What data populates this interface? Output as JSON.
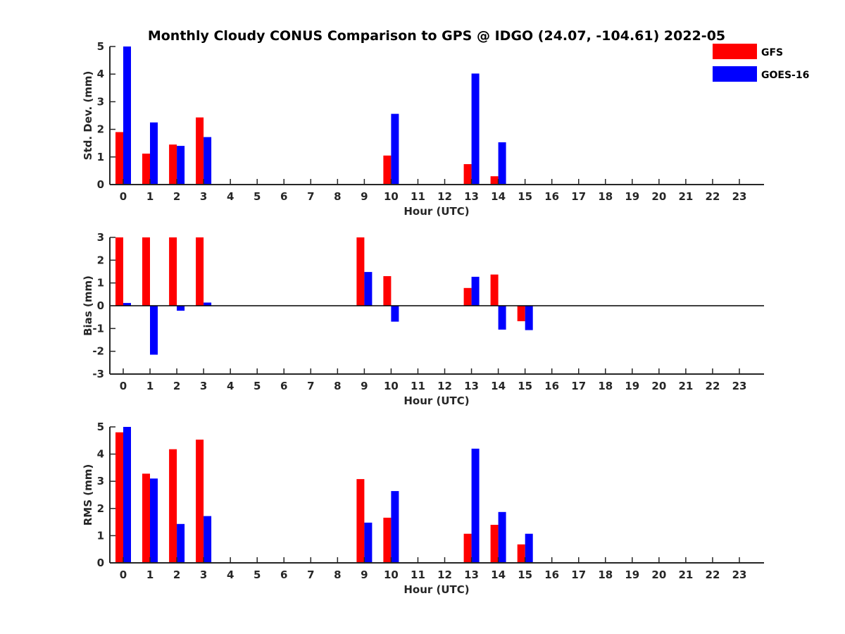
{
  "chart_data": {
    "title": "Monthly Cloudy CONUS Comparison to GPS @ IDGO (24.07, -104.61) 2022-05",
    "legend": [
      {
        "name": "GFS",
        "color": "#ff0000"
      },
      {
        "name": "GOES-16",
        "color": "#0000ff"
      }
    ],
    "legend_position": "top-right",
    "panels": [
      {
        "type": "bar",
        "xlabel": "Hour (UTC)",
        "ylabel": "Std. Dev. (mm)",
        "ylim": [
          0,
          5
        ],
        "yticks": [
          0,
          1,
          2,
          3,
          4,
          5
        ],
        "xticks": [
          0,
          1,
          2,
          3,
          4,
          5,
          6,
          7,
          8,
          9,
          10,
          11,
          12,
          13,
          14,
          15,
          16,
          17,
          18,
          19,
          20,
          21,
          22,
          23
        ],
        "grid": false,
        "series": [
          {
            "name": "GFS",
            "color": "#ff0000",
            "values": [
              1.9,
              1.12,
              1.45,
              2.43,
              0,
              0,
              0,
              0,
              0,
              0,
              1.05,
              0,
              0,
              0.74,
              0.3,
              0,
              0,
              0,
              0,
              0,
              0,
              0,
              0,
              0
            ]
          },
          {
            "name": "GOES-16",
            "color": "#0000ff",
            "values": [
              5.0,
              2.25,
              1.4,
              1.72,
              0,
              0,
              0,
              0,
              0,
              0,
              2.56,
              0,
              0,
              4.02,
              1.53,
              0,
              0,
              0,
              0,
              0,
              0,
              0,
              0,
              0
            ]
          }
        ]
      },
      {
        "type": "bar",
        "xlabel": "Hour (UTC)",
        "ylabel": "Bias (mm)",
        "ylim": [
          -3,
          3
        ],
        "yticks": [
          -3,
          -2,
          -1,
          0,
          1,
          2,
          3
        ],
        "xticks": [
          0,
          1,
          2,
          3,
          4,
          5,
          6,
          7,
          8,
          9,
          10,
          11,
          12,
          13,
          14,
          15,
          16,
          17,
          18,
          19,
          20,
          21,
          22,
          23
        ],
        "grid": false,
        "zero_line": true,
        "series": [
          {
            "name": "GFS",
            "color": "#ff0000",
            "values": [
              3.0,
              3.0,
              3.0,
              3.0,
              0,
              0,
              0,
              0,
              0,
              3.0,
              1.3,
              0,
              0,
              0.78,
              1.37,
              -0.68,
              0,
              0,
              0,
              0,
              0,
              0,
              0,
              0
            ]
          },
          {
            "name": "GOES-16",
            "color": "#0000ff",
            "values": [
              0.12,
              -2.15,
              -0.22,
              0.14,
              0,
              0,
              0,
              0,
              0,
              1.48,
              -0.7,
              0,
              0,
              1.27,
              -1.05,
              -1.07,
              0,
              0,
              0,
              0,
              0,
              0,
              0,
              0
            ]
          }
        ]
      },
      {
        "type": "bar",
        "xlabel": "Hour (UTC)",
        "ylabel": "RMS (mm)",
        "ylim": [
          0,
          5
        ],
        "yticks": [
          0,
          1,
          2,
          3,
          4,
          5
        ],
        "xticks": [
          0,
          1,
          2,
          3,
          4,
          5,
          6,
          7,
          8,
          9,
          10,
          11,
          12,
          13,
          14,
          15,
          16,
          17,
          18,
          19,
          20,
          21,
          22,
          23
        ],
        "grid": false,
        "series": [
          {
            "name": "GFS",
            "color": "#ff0000",
            "values": [
              4.8,
              3.28,
              4.18,
              4.53,
              0,
              0,
              0,
              0,
              0,
              3.08,
              1.66,
              0,
              0,
              1.07,
              1.4,
              0.68,
              0,
              0,
              0,
              0,
              0,
              0,
              0,
              0
            ]
          },
          {
            "name": "GOES-16",
            "color": "#0000ff",
            "values": [
              5.0,
              3.1,
              1.43,
              1.72,
              0,
              0,
              0,
              0,
              0,
              1.48,
              2.64,
              0,
              0,
              4.2,
              1.87,
              1.07,
              0,
              0,
              0,
              0,
              0,
              0,
              0,
              0
            ]
          }
        ]
      }
    ]
  }
}
